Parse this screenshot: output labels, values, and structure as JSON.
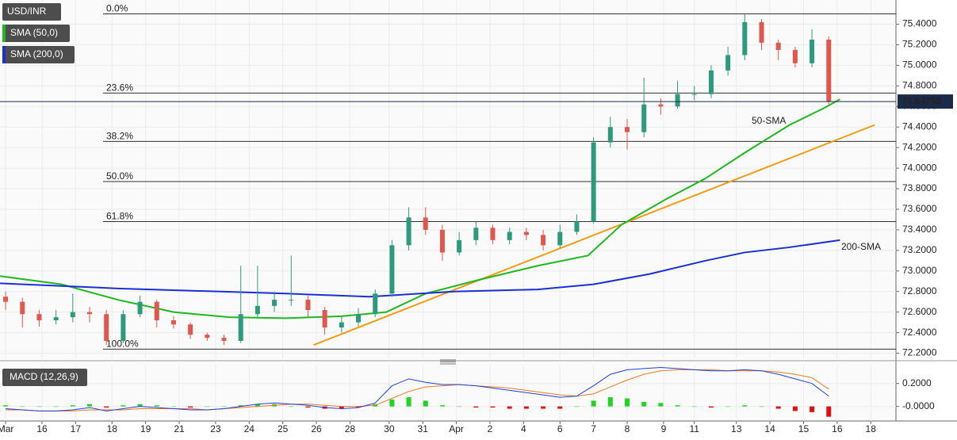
{
  "chart_data": [
    {
      "type": "candlestick",
      "symbol": "USD/INR",
      "xlim": [
        -1,
        159
      ],
      "ylim": [
        72.15,
        75.62
      ],
      "yticks": [
        {
          "value": 72.2,
          "label": "72.2000"
        },
        {
          "value": 72.4,
          "label": "72.4000"
        },
        {
          "value": 72.6,
          "label": "72.6000"
        },
        {
          "value": 72.8,
          "label": "72.8000"
        },
        {
          "value": 73.0,
          "label": "73.0000"
        },
        {
          "value": 73.2,
          "label": "73.2000"
        },
        {
          "value": 73.4,
          "label": "73.4000"
        },
        {
          "value": 73.6,
          "label": "73.6000"
        },
        {
          "value": 73.8,
          "label": "73.8000"
        },
        {
          "value": 74.0,
          "label": "74.0000"
        },
        {
          "value": 74.2,
          "label": "74.2000"
        },
        {
          "value": 74.4,
          "label": "74.4000"
        },
        {
          "value": 74.6,
          "label": "74.6000"
        },
        {
          "value": 74.8,
          "label": "74.8000"
        },
        {
          "value": 75.0,
          "label": "75.0000"
        },
        {
          "value": 75.2,
          "label": "75.2000"
        },
        {
          "value": 75.4,
          "label": "75.4000"
        }
      ],
      "grid": true,
      "up_color": "#2e9a7c",
      "down_color": "#e0574f",
      "x": [
        0,
        3,
        6,
        9,
        12,
        15,
        18,
        21,
        24,
        27,
        30,
        33,
        36,
        39,
        42,
        45,
        48,
        51,
        54,
        57,
        60,
        63,
        66,
        69,
        72,
        75,
        78,
        81,
        84,
        87,
        90,
        93,
        96,
        99,
        102,
        105,
        108,
        111,
        114,
        117,
        120,
        123,
        126,
        129,
        132,
        135,
        138,
        141,
        144,
        147
      ],
      "open": [
        72.75,
        72.7,
        72.58,
        72.52,
        72.55,
        72.6,
        72.58,
        72.32,
        72.58,
        72.7,
        72.52,
        72.48,
        72.38,
        72.35,
        72.32,
        72.58,
        72.66,
        72.72,
        72.72,
        72.62,
        72.45,
        72.5,
        72.58,
        72.78,
        73.25,
        73.52,
        73.4,
        73.18,
        73.3,
        73.42,
        73.3,
        73.38,
        73.35,
        73.25,
        73.38,
        73.48,
        74.25,
        74.4,
        74.35,
        74.62,
        74.6,
        74.72,
        74.72,
        74.95,
        75.1,
        75.42,
        75.22,
        75.15,
        75.02,
        75.25
      ],
      "high": [
        72.8,
        72.74,
        72.62,
        72.62,
        72.78,
        72.65,
        72.62,
        72.62,
        72.76,
        72.72,
        72.56,
        72.5,
        72.4,
        72.38,
        73.05,
        73.05,
        72.8,
        73.15,
        72.76,
        72.65,
        72.56,
        72.64,
        72.82,
        73.3,
        73.62,
        73.62,
        73.45,
        73.38,
        73.48,
        73.45,
        73.42,
        73.42,
        73.4,
        73.45,
        73.55,
        74.3,
        74.5,
        74.48,
        74.88,
        74.68,
        74.85,
        74.8,
        75.0,
        75.18,
        75.5,
        75.45,
        75.25,
        75.18,
        75.35,
        75.28
      ],
      "low": [
        72.62,
        72.45,
        72.46,
        72.48,
        72.5,
        72.5,
        72.28,
        72.3,
        72.55,
        72.45,
        72.44,
        72.34,
        72.32,
        72.28,
        72.3,
        72.55,
        72.6,
        72.66,
        72.55,
        72.38,
        72.4,
        72.46,
        72.55,
        72.75,
        73.2,
        73.35,
        73.1,
        73.15,
        73.25,
        73.26,
        73.26,
        73.3,
        73.2,
        73.22,
        73.35,
        73.46,
        74.2,
        74.18,
        74.3,
        74.52,
        74.58,
        74.66,
        74.68,
        74.9,
        75.05,
        75.15,
        75.05,
        74.98,
        74.98,
        74.62
      ],
      "close": [
        72.7,
        72.58,
        72.52,
        72.55,
        72.6,
        72.58,
        72.32,
        72.58,
        72.7,
        72.52,
        72.48,
        72.38,
        72.35,
        72.32,
        72.58,
        72.66,
        72.72,
        72.72,
        72.62,
        72.45,
        72.5,
        72.58,
        72.78,
        73.25,
        73.52,
        73.4,
        73.18,
        73.3,
        73.42,
        73.3,
        73.38,
        73.35,
        73.25,
        73.38,
        73.48,
        74.25,
        74.4,
        74.35,
        74.62,
        74.6,
        74.72,
        74.72,
        74.95,
        75.1,
        75.42,
        75.22,
        75.15,
        75.02,
        75.25,
        74.65
      ],
      "lines": [
        {
          "name": "SMA (50,0)",
          "label": "50-SMA",
          "color": "#1db91d",
          "x": [
            -1,
            10,
            20,
            30,
            40,
            50,
            60,
            68,
            75,
            85,
            95,
            104,
            110,
            118,
            125,
            132,
            140,
            146,
            149
          ],
          "values": [
            72.95,
            72.87,
            72.72,
            72.6,
            72.55,
            72.54,
            72.56,
            72.6,
            72.78,
            72.92,
            73.05,
            73.15,
            73.45,
            73.7,
            73.9,
            74.15,
            74.42,
            74.58,
            74.67
          ]
        },
        {
          "name": "SMA (200,0)",
          "label": "200-SMA",
          "color": "#1a2fd6",
          "x": [
            -1,
            20,
            50,
            65,
            80,
            95,
            105,
            115,
            125,
            132,
            140,
            149
          ],
          "values": [
            72.88,
            72.83,
            72.78,
            72.75,
            72.8,
            72.82,
            72.87,
            72.97,
            73.1,
            73.18,
            73.23,
            73.3
          ]
        }
      ],
      "trendline": {
        "color": "#f59a12",
        "x": [
          55,
          155.2
        ],
        "values": [
          72.28,
          74.42
        ]
      },
      "levels": [
        {
          "label": "0.0%",
          "value": 75.5
        },
        {
          "label": "23.6%",
          "value": 74.73
        },
        {
          "label": "38.2%",
          "value": 74.26
        },
        {
          "label": "50.0%",
          "value": 73.87
        },
        {
          "label": "61.8%",
          "value": 73.48
        },
        {
          "label": "100.0%",
          "value": 72.24
        }
      ],
      "last_price": {
        "value": 74.6475,
        "label": "74.64750"
      }
    },
    {
      "type": "macd",
      "title": "MACD (12,26,9)",
      "xlim": [
        -1,
        159
      ],
      "ylim": [
        -0.12,
        0.35
      ],
      "yticks": [
        {
          "value": 0.2,
          "label": "0.2000"
        },
        {
          "value": 0,
          "label": "-0.0000"
        }
      ],
      "xticks": [
        {
          "value": 0,
          "label": "Mar"
        },
        {
          "value": 6.5,
          "label": "16"
        },
        {
          "value": 12.5,
          "label": "17"
        },
        {
          "value": 19,
          "label": "18"
        },
        {
          "value": 25,
          "label": "19"
        },
        {
          "value": 31,
          "label": "21"
        },
        {
          "value": 37.5,
          "label": "23"
        },
        {
          "value": 43.5,
          "label": "24"
        },
        {
          "value": 49.5,
          "label": "25"
        },
        {
          "value": 55.5,
          "label": "26"
        },
        {
          "value": 61.5,
          "label": "28"
        },
        {
          "value": 68.5,
          "label": "30"
        },
        {
          "value": 74.5,
          "label": "31"
        },
        {
          "value": 80.5,
          "label": "Apr"
        },
        {
          "value": 86.5,
          "label": "2"
        },
        {
          "value": 92.5,
          "label": "4"
        },
        {
          "value": 99,
          "label": "6"
        },
        {
          "value": 105,
          "label": "7"
        },
        {
          "value": 111,
          "label": "8"
        },
        {
          "value": 117.5,
          "label": "9"
        },
        {
          "value": 123,
          "label": "11"
        },
        {
          "value": 130.5,
          "label": "13"
        },
        {
          "value": 136.5,
          "label": "14"
        },
        {
          "value": 142.5,
          "label": "15"
        },
        {
          "value": 148.5,
          "label": "16"
        },
        {
          "value": 154.5,
          "label": "18"
        }
      ],
      "pos_color": "#22d422",
      "neg_color": "#e01010",
      "histogram": [
        0.01,
        0.0,
        0.0,
        0.0,
        0.01,
        0.02,
        -0.01,
        0.01,
        0.02,
        0.01,
        0.0,
        -0.01,
        0.0,
        0.0,
        0.01,
        0.02,
        0.02,
        0.0,
        -0.01,
        -0.02,
        -0.02,
        -0.01,
        0.02,
        0.06,
        0.08,
        0.05,
        0.01,
        0.0,
        -0.01,
        -0.01,
        -0.02,
        -0.02,
        -0.02,
        -0.02,
        0.0,
        0.05,
        0.08,
        0.07,
        0.04,
        0.03,
        0.01,
        0.0,
        -0.01,
        0.0,
        0.01,
        0.0,
        -0.02,
        -0.04,
        -0.05,
        -0.09
      ],
      "macd": {
        "color": "#2040e0",
        "values": [
          -0.02,
          -0.03,
          -0.04,
          -0.04,
          -0.03,
          -0.01,
          -0.04,
          -0.02,
          0.0,
          -0.01,
          -0.02,
          -0.03,
          -0.03,
          -0.02,
          0.0,
          0.02,
          0.03,
          0.02,
          0.01,
          -0.01,
          -0.02,
          -0.01,
          0.03,
          0.18,
          0.24,
          0.21,
          0.19,
          0.19,
          0.18,
          0.16,
          0.14,
          0.12,
          0.1,
          0.08,
          0.09,
          0.18,
          0.28,
          0.32,
          0.33,
          0.34,
          0.33,
          0.32,
          0.31,
          0.31,
          0.32,
          0.31,
          0.28,
          0.24,
          0.2,
          0.09
        ]
      },
      "signal": {
        "color": "#f07820",
        "values": [
          -0.03,
          -0.03,
          -0.04,
          -0.04,
          -0.04,
          -0.03,
          -0.03,
          -0.03,
          -0.02,
          -0.02,
          -0.02,
          -0.02,
          -0.03,
          -0.02,
          -0.01,
          0.0,
          0.01,
          0.02,
          0.02,
          0.01,
          0.0,
          0.0,
          0.01,
          0.07,
          0.13,
          0.17,
          0.18,
          0.19,
          0.18,
          0.17,
          0.16,
          0.14,
          0.12,
          0.1,
          0.09,
          0.11,
          0.17,
          0.23,
          0.28,
          0.31,
          0.32,
          0.32,
          0.32,
          0.31,
          0.31,
          0.31,
          0.3,
          0.28,
          0.25,
          0.15
        ]
      }
    }
  ]
}
